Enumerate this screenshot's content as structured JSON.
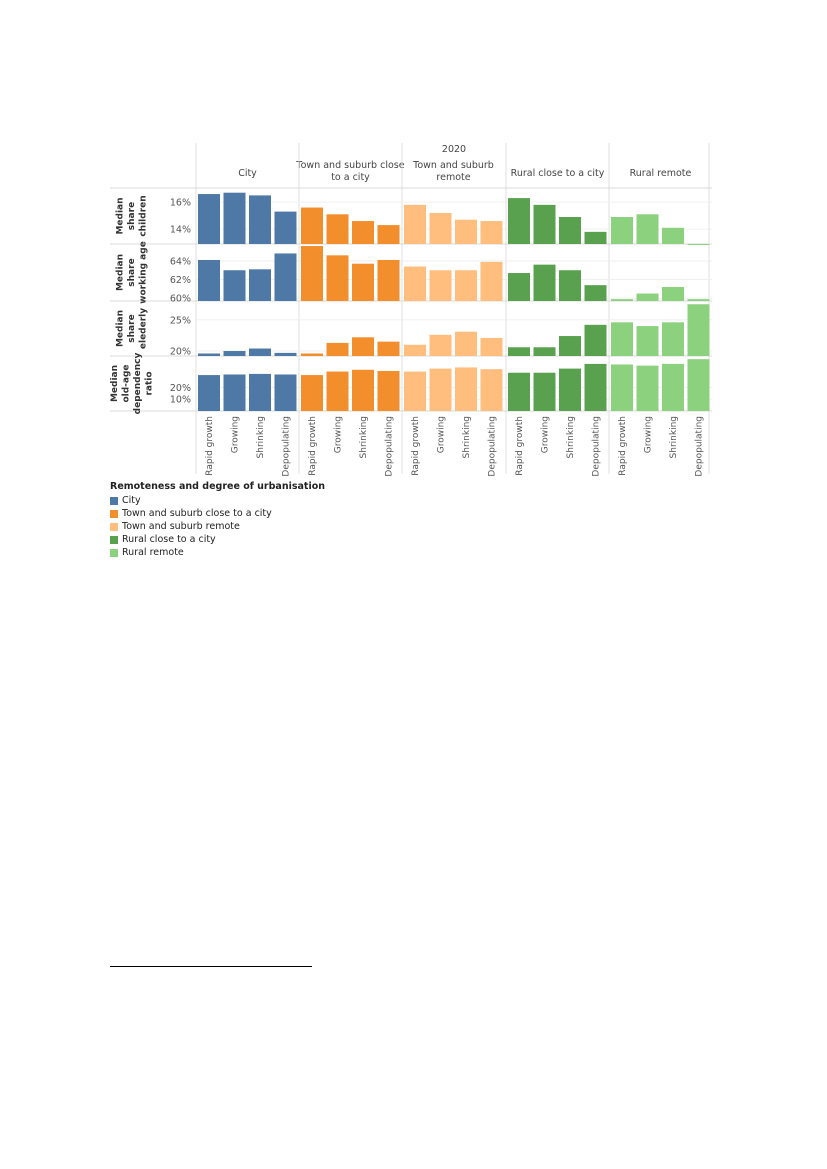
{
  "chart_data": {
    "type": "bar",
    "title": "2020",
    "groups": [
      "City",
      "Town and suburb close to a city",
      "Town and suburb remote",
      "Rural close to a city",
      "Rural remote"
    ],
    "categories": [
      "Rapid growth",
      "Growing",
      "Shrinking",
      "Depopulating"
    ],
    "colors": [
      "#4e79a7",
      "#f28e2b",
      "#ffbe7d",
      "#59a14f",
      "#8cd17d"
    ],
    "panels": [
      {
        "label": [
          "Median",
          "share",
          "children"
        ],
        "ticks": [
          {
            "v": 16,
            "t": "16%"
          },
          {
            "v": 14,
            "t": "14%"
          }
        ],
        "ylim": [
          12.9,
          16.9
        ],
        "values": [
          [
            16.6,
            16.7,
            16.5,
            15.3
          ],
          [
            15.6,
            15.1,
            14.6,
            14.3
          ],
          [
            15.8,
            15.2,
            14.7,
            14.6
          ],
          [
            16.3,
            15.8,
            14.9,
            13.8
          ],
          [
            14.9,
            15.1,
            14.1,
            12.9
          ]
        ]
      },
      {
        "label": [
          "Median",
          "share",
          "working age"
        ],
        "ticks": [
          {
            "v": 64,
            "t": "64%"
          },
          {
            "v": 62,
            "t": "62%"
          },
          {
            "v": 60,
            "t": "60%"
          }
        ],
        "ylim": [
          59.7,
          65.6
        ],
        "values": [
          [
            64.1,
            63.0,
            63.1,
            64.8
          ],
          [
            65.6,
            64.6,
            63.7,
            64.1
          ],
          [
            63.4,
            63.0,
            63.0,
            63.9
          ],
          [
            62.7,
            63.6,
            63.0,
            61.4
          ],
          [
            59.9,
            60.5,
            61.2,
            59.9
          ]
        ]
      },
      {
        "label": [
          "Median",
          "share",
          "elederly"
        ],
        "ticks": [
          {
            "v": 25,
            "t": "25%"
          },
          {
            "v": 20,
            "t": "20%"
          }
        ],
        "ylim": [
          19.2,
          27.7
        ],
        "values": [
          [
            19.6,
            20.0,
            20.4,
            19.7
          ],
          [
            19.6,
            21.3,
            22.2,
            21.5
          ],
          [
            21.0,
            22.6,
            23.1,
            22.1
          ],
          [
            20.6,
            20.6,
            22.4,
            24.2
          ],
          [
            24.6,
            24.0,
            24.6,
            27.5
          ]
        ]
      },
      {
        "label": [
          "Median",
          "old-age",
          "dependency",
          "ratio"
        ],
        "ticks": [
          {
            "v": 20,
            "t": "20%"
          },
          {
            "v": 10,
            "t": "10%"
          }
        ],
        "ylim": [
          0,
          45
        ],
        "values": [
          [
            30.5,
            31.0,
            31.5,
            31.0
          ],
          [
            30.5,
            33.5,
            35.0,
            34.0
          ],
          [
            33.5,
            36.0,
            37.0,
            35.5
          ],
          [
            32.5,
            32.5,
            36.0,
            40.0
          ],
          [
            39.5,
            38.5,
            40.0,
            44.0
          ]
        ]
      }
    ]
  },
  "legend": {
    "title": "Remoteness and degree of urbanisation",
    "items": [
      {
        "label": "City",
        "color": "#4e79a7"
      },
      {
        "label": "Town and suburb close to a city",
        "color": "#f28e2b"
      },
      {
        "label": "Town and suburb remote",
        "color": "#ffbe7d"
      },
      {
        "label": "Rural close to a city",
        "color": "#59a14f"
      },
      {
        "label": "Rural remote",
        "color": "#8cd17d"
      }
    ]
  }
}
